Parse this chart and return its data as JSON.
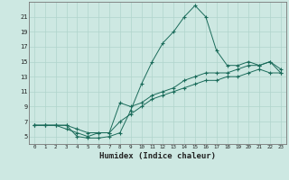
{
  "xlabel": "Humidex (Indice chaleur)",
  "ylabel": "",
  "bg_color": "#cde8e2",
  "grid_color": "#b0d4cc",
  "line_color": "#1a6b5a",
  "xlim": [
    -0.5,
    23.5
  ],
  "ylim": [
    4.0,
    23.0
  ],
  "yticks": [
    5,
    7,
    9,
    11,
    13,
    15,
    17,
    19,
    21
  ],
  "xticks": [
    0,
    1,
    2,
    3,
    4,
    5,
    6,
    7,
    8,
    9,
    10,
    11,
    12,
    13,
    14,
    15,
    16,
    17,
    18,
    19,
    20,
    21,
    22,
    23
  ],
  "series1_x": [
    0,
    1,
    2,
    3,
    4,
    5,
    6,
    7,
    8,
    9,
    10,
    11,
    12,
    13,
    14,
    15,
    16,
    17,
    18,
    19,
    20,
    21,
    22,
    23
  ],
  "series1_y": [
    6.5,
    6.5,
    6.5,
    6.5,
    5.0,
    4.8,
    4.8,
    5.0,
    5.5,
    8.5,
    12.0,
    15.0,
    17.5,
    19.0,
    21.0,
    22.5,
    21.0,
    16.5,
    14.5,
    14.5,
    15.0,
    14.5,
    15.0,
    14.0
  ],
  "series2_x": [
    0,
    1,
    2,
    3,
    4,
    5,
    6,
    7,
    8,
    9,
    10,
    11,
    12,
    13,
    14,
    15,
    16,
    17,
    18,
    19,
    20,
    21,
    22,
    23
  ],
  "series2_y": [
    6.5,
    6.5,
    6.5,
    6.0,
    5.5,
    5.0,
    5.5,
    5.5,
    9.5,
    9.0,
    9.5,
    10.5,
    11.0,
    11.5,
    12.5,
    13.0,
    13.5,
    13.5,
    13.5,
    14.0,
    14.5,
    14.5,
    15.0,
    13.5
  ],
  "series3_x": [
    0,
    1,
    2,
    3,
    4,
    5,
    6,
    7,
    8,
    9,
    10,
    11,
    12,
    13,
    14,
    15,
    16,
    17,
    18,
    19,
    20,
    21,
    22,
    23
  ],
  "series3_y": [
    6.5,
    6.5,
    6.5,
    6.5,
    6.0,
    5.5,
    5.5,
    5.5,
    7.0,
    8.0,
    9.0,
    10.0,
    10.5,
    11.0,
    11.5,
    12.0,
    12.5,
    12.5,
    13.0,
    13.0,
    13.5,
    14.0,
    13.5,
    13.5
  ]
}
